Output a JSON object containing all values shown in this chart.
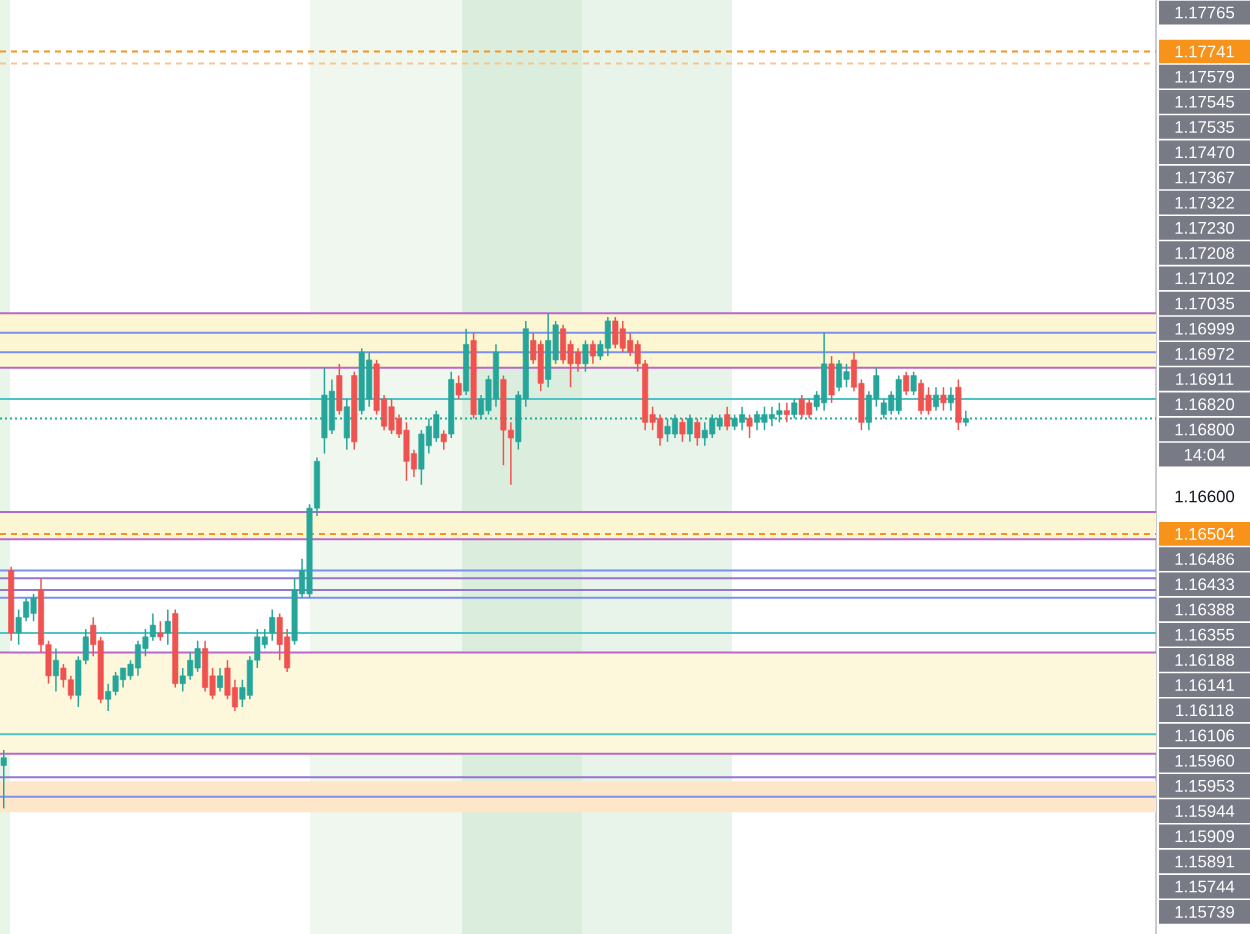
{
  "chart_data": {
    "type": "candlestick",
    "categories": [
      null,
      null,
      null,
      null,
      null,
      null,
      null,
      null,
      null,
      null,
      null,
      null,
      null,
      null,
      null,
      null,
      null,
      null,
      null,
      null,
      null,
      null,
      null,
      null,
      null,
      null,
      null,
      null,
      null,
      null,
      null,
      null,
      null,
      null,
      null,
      null,
      null,
      null,
      null,
      null,
      null,
      null,
      null,
      null,
      null,
      null,
      null,
      null,
      null,
      null,
      null,
      null,
      null,
      null,
      null,
      null,
      null,
      null,
      null,
      null,
      null,
      null,
      null,
      null,
      null,
      null,
      null,
      null,
      null,
      null,
      null,
      null,
      null,
      null,
      null,
      null,
      null,
      null,
      null,
      null,
      null,
      null,
      null,
      null,
      null,
      null,
      null,
      null,
      null,
      null,
      null,
      null,
      null,
      null,
      null,
      null,
      null,
      null,
      null,
      null,
      null,
      null,
      null,
      null,
      null,
      null,
      null,
      null,
      null,
      null,
      null,
      null,
      null,
      null,
      null,
      null,
      null,
      null,
      null,
      null,
      null,
      null,
      null,
      null,
      null,
      null,
      null,
      null,
      null,
      null,
      null,
      null,
      null,
      null,
      null,
      null,
      null,
      null,
      null,
      null,
      null,
      null,
      null,
      null,
      null,
      null,
      null,
      null,
      null,
      null,
      null,
      null,
      null,
      null,
      null
    ],
    "ohlc": [
      [
        1.1591,
        1.1595,
        1.158,
        1.1593
      ],
      [
        1.1641,
        1.1642,
        1.1623,
        1.1625
      ],
      [
        1.1625,
        1.1631,
        1.1622,
        1.1629
      ],
      [
        1.1629,
        1.1634,
        1.1628,
        1.1633
      ],
      [
        1.163,
        1.1635,
        1.1628,
        1.1634
      ],
      [
        1.1636,
        1.1639,
        1.162,
        1.1622
      ],
      [
        1.1622,
        1.1623,
        1.1612,
        1.1614
      ],
      [
        1.1614,
        1.1621,
        1.161,
        1.1618
      ],
      [
        1.1616,
        1.1617,
        1.1611,
        1.1613
      ],
      [
        1.1613,
        1.1614,
        1.1608,
        1.1609
      ],
      [
        1.1609,
        1.1619,
        1.1606,
        1.1618
      ],
      [
        1.1618,
        1.1626,
        1.1617,
        1.1624
      ],
      [
        1.1627,
        1.1629,
        1.1619,
        1.1622
      ],
      [
        1.1623,
        1.1624,
        1.1607,
        1.1608
      ],
      [
        1.1608,
        1.1612,
        1.1605,
        1.161
      ],
      [
        1.161,
        1.1615,
        1.1609,
        1.1614
      ],
      [
        1.1613,
        1.1616,
        1.1611,
        1.1616
      ],
      [
        1.1614,
        1.1618,
        1.1613,
        1.1617
      ],
      [
        1.1616,
        1.1623,
        1.1614,
        1.1622
      ],
      [
        1.1621,
        1.1626,
        1.1619,
        1.1624
      ],
      [
        1.1624,
        1.163,
        1.1623,
        1.1627
      ],
      [
        1.1625,
        1.1628,
        1.1623,
        1.1624
      ],
      [
        1.1625,
        1.1631,
        1.1622,
        1.1628
      ],
      [
        1.163,
        1.1631,
        1.1611,
        1.1612
      ],
      [
        1.1612,
        1.1616,
        1.161,
        1.1614
      ],
      [
        1.1614,
        1.162,
        1.1613,
        1.1618
      ],
      [
        1.1616,
        1.1623,
        1.1615,
        1.1621
      ],
      [
        1.1621,
        1.1623,
        1.161,
        1.1611
      ],
      [
        1.1614,
        1.1616,
        1.1608,
        1.1609
      ],
      [
        1.1611,
        1.1616,
        1.161,
        1.1614
      ],
      [
        1.1616,
        1.1618,
        1.1608,
        1.1609
      ],
      [
        1.1611,
        1.1613,
        1.1605,
        1.1606
      ],
      [
        1.1608,
        1.1613,
        1.1606,
        1.1611
      ],
      [
        1.1609,
        1.1619,
        1.1608,
        1.1618
      ],
      [
        1.1618,
        1.1626,
        1.1616,
        1.1624
      ],
      [
        1.1622,
        1.1626,
        1.1621,
        1.1624
      ],
      [
        1.1625,
        1.1631,
        1.1623,
        1.1629
      ],
      [
        1.1629,
        1.163,
        1.1618,
        1.1622
      ],
      [
        1.1624,
        1.1626,
        1.1615,
        1.1616
      ],
      [
        1.1623,
        1.1639,
        1.1622,
        1.1636
      ],
      [
        1.1635,
        1.1644,
        1.1634,
        1.1641
      ],
      [
        1.1635,
        1.1658,
        1.1634,
        1.1657
      ],
      [
        1.1657,
        1.167,
        1.1655,
        1.1669
      ],
      [
        1.1675,
        1.1693,
        1.1671,
        1.1686
      ],
      [
        1.1677,
        1.169,
        1.1676,
        1.1687
      ],
      [
        1.1691,
        1.1694,
        1.1681,
        1.1682
      ],
      [
        1.1675,
        1.1685,
        1.1672,
        1.1683
      ],
      [
        1.1691,
        1.1692,
        1.1672,
        1.1674
      ],
      [
        1.1682,
        1.1698,
        1.1681,
        1.1697
      ],
      [
        1.1685,
        1.1697,
        1.1683,
        1.1695
      ],
      [
        1.1694,
        1.1695,
        1.1681,
        1.1682
      ],
      [
        1.1685,
        1.1686,
        1.1677,
        1.1678
      ],
      [
        1.1683,
        1.1685,
        1.1676,
        1.1677
      ],
      [
        1.168,
        1.1681,
        1.1675,
        1.1676
      ],
      [
        1.1677,
        1.1679,
        1.1664,
        1.1669
      ],
      [
        1.1671,
        1.1672,
        1.1665,
        1.1667
      ],
      [
        1.1667,
        1.1677,
        1.1663,
        1.1676
      ],
      [
        1.1673,
        1.168,
        1.1671,
        1.1678
      ],
      [
        1.1675,
        1.1682,
        1.1674,
        1.1681
      ],
      [
        1.1676,
        1.1677,
        1.1672,
        1.1674
      ],
      [
        1.1676,
        1.1692,
        1.1675,
        1.169
      ],
      [
        1.1689,
        1.1691,
        1.1685,
        1.1686
      ],
      [
        1.1687,
        1.1703,
        1.1686,
        1.1699
      ],
      [
        1.17,
        1.1702,
        1.168,
        1.1681
      ],
      [
        1.1681,
        1.1686,
        1.168,
        1.1685
      ],
      [
        1.1682,
        1.1691,
        1.1681,
        1.169
      ],
      [
        1.1685,
        1.1699,
        1.1683,
        1.1697
      ],
      [
        1.169,
        1.1691,
        1.1668,
        1.1677
      ],
      [
        1.1677,
        1.1679,
        1.1663,
        1.1675
      ],
      [
        1.1674,
        1.1687,
        1.1672,
        1.1686
      ],
      [
        1.1685,
        1.1705,
        1.1683,
        1.1703
      ],
      [
        1.17,
        1.1702,
        1.1694,
        1.1695
      ],
      [
        1.1699,
        1.17,
        1.1687,
        1.1689
      ],
      [
        1.169,
        1.1707,
        1.1688,
        1.17
      ],
      [
        1.1695,
        1.1705,
        1.1694,
        1.1704
      ],
      [
        1.1703,
        1.1704,
        1.1694,
        1.1695
      ],
      [
        1.1699,
        1.17,
        1.1688,
        1.1694
      ],
      [
        1.1697,
        1.1698,
        1.1692,
        1.1694
      ],
      [
        1.1694,
        1.17,
        1.1692,
        1.1699
      ],
      [
        1.1699,
        1.17,
        1.1694,
        1.1696
      ],
      [
        1.1696,
        1.17,
        1.1695,
        1.1699
      ],
      [
        1.1698,
        1.1706,
        1.1696,
        1.1705
      ],
      [
        1.1705,
        1.1706,
        1.1698,
        1.1699
      ],
      [
        1.1703,
        1.1705,
        1.1697,
        1.1698
      ],
      [
        1.17,
        1.1702,
        1.1696,
        1.1697
      ],
      [
        1.1699,
        1.17,
        1.1692,
        1.1694
      ],
      [
        1.1694,
        1.1695,
        1.1677,
        1.1679
      ],
      [
        1.1681,
        1.1683,
        1.1677,
        1.1679
      ],
      [
        1.168,
        1.1681,
        1.1673,
        1.1675
      ],
      [
        1.1676,
        1.168,
        1.1674,
        1.1678
      ],
      [
        1.1676,
        1.1681,
        1.1675,
        1.168
      ],
      [
        1.1679,
        1.168,
        1.1674,
        1.1676
      ],
      [
        1.1676,
        1.1681,
        1.1674,
        1.168
      ],
      [
        1.1679,
        1.168,
        1.1673,
        1.1675
      ],
      [
        1.1675,
        1.1679,
        1.1673,
        1.1677
      ],
      [
        1.1676,
        1.1681,
        1.1675,
        1.168
      ],
      [
        1.1678,
        1.1681,
        1.1677,
        1.168
      ],
      [
        1.1681,
        1.1683,
        1.1677,
        1.1678
      ],
      [
        1.1678,
        1.1681,
        1.1677,
        1.168
      ],
      [
        1.1679,
        1.1683,
        1.1677,
        1.1681
      ],
      [
        1.168,
        1.1681,
        1.1675,
        1.1678
      ],
      [
        1.1679,
        1.1682,
        1.1677,
        1.1681
      ],
      [
        1.1679,
        1.1683,
        1.1677,
        1.1681
      ],
      [
        1.168,
        1.1683,
        1.1678,
        1.1681
      ],
      [
        1.1681,
        1.1684,
        1.1679,
        1.1682
      ],
      [
        1.1682,
        1.1684,
        1.1679,
        1.1681
      ],
      [
        1.1681,
        1.1685,
        1.168,
        1.1684
      ],
      [
        1.1685,
        1.1686,
        1.168,
        1.1681
      ],
      [
        1.1684,
        1.1685,
        1.168,
        1.1681
      ],
      [
        1.1683,
        1.1687,
        1.1682,
        1.1686
      ],
      [
        1.1684,
        1.1702,
        1.1682,
        1.1694
      ],
      [
        1.1694,
        1.1696,
        1.1684,
        1.1686
      ],
      [
        1.1688,
        1.1695,
        1.1687,
        1.1694
      ],
      [
        1.169,
        1.1694,
        1.1688,
        1.1692
      ],
      [
        1.1695,
        1.1697,
        1.1687,
        1.1688
      ],
      [
        1.1689,
        1.169,
        1.1677,
        1.1679
      ],
      [
        1.1679,
        1.1687,
        1.1677,
        1.1686
      ],
      [
        1.1685,
        1.1693,
        1.1683,
        1.1691
      ],
      [
        1.1681,
        1.1685,
        1.168,
        1.1684
      ],
      [
        1.1682,
        1.1687,
        1.1681,
        1.1686
      ],
      [
        1.1682,
        1.1691,
        1.1681,
        1.169
      ],
      [
        1.1691,
        1.1692,
        1.1686,
        1.1687
      ],
      [
        1.1687,
        1.1692,
        1.1686,
        1.1691
      ],
      [
        1.1689,
        1.169,
        1.1681,
        1.1682
      ],
      [
        1.1686,
        1.1688,
        1.1681,
        1.1682
      ],
      [
        1.1683,
        1.1688,
        1.1682,
        1.1686
      ],
      [
        1.1686,
        1.1688,
        1.1682,
        1.1684
      ],
      [
        1.1684,
        1.1688,
        1.1682,
        1.1686
      ],
      [
        1.1688,
        1.169,
        1.1677,
        1.1679
      ],
      [
        1.1679,
        1.1682,
        1.1678,
        1.168
      ],
      null,
      null,
      null,
      null,
      null,
      null,
      null,
      null,
      null,
      null,
      null,
      null,
      null,
      null,
      null,
      null,
      null,
      null,
      null,
      null,
      null,
      null,
      null,
      null,
      null
    ],
    "ylim": [
      1.15478,
      1.17873
    ],
    "yticks": [
      {
        "value": 1.17741,
        "label": "1.17741"
      },
      {
        "value": 1.166,
        "label": "1.16600"
      },
      {
        "value": 1.16504,
        "label": "1.16504"
      }
    ],
    "tick_labels": "y",
    "bands": [
      {
        "axis": "y",
        "from": 1.1693,
        "to": 1.1707,
        "color": "#fdf6d2"
      },
      {
        "axis": "y",
        "from": 1.1649,
        "to": 1.1656,
        "color": "#fdf6d2"
      },
      {
        "axis": "y",
        "from": 1.1594,
        "to": 1.162,
        "color": "#fdf8dc"
      },
      {
        "axis": "y",
        "from": 1.1579,
        "to": 1.1587,
        "color": "#fde7c8"
      }
    ],
    "ref_lines": [
      {
        "axis": "y",
        "value": 1.17741,
        "color": "#f7931a",
        "line_style": "dashed"
      },
      {
        "axis": "y",
        "value": 1.168,
        "color": "#22ab94",
        "line_style": "dotted"
      },
      {
        "axis": "y",
        "value": 1.16504,
        "color": "#f7931a",
        "line_style": "dashed"
      },
      {
        "axis": "y",
        "value": 1.1771,
        "color": "#f9c58d",
        "line_style": "dashed"
      },
      {
        "axis": "y",
        "value": 1.1707,
        "color": "#ba68c8",
        "line_style": "solid"
      },
      {
        "axis": "y",
        "value": 1.1702,
        "color": "#7b8ff0",
        "line_style": "solid"
      },
      {
        "axis": "y",
        "value": 1.1697,
        "color": "#7b8ff0",
        "line_style": "solid"
      },
      {
        "axis": "y",
        "value": 1.1693,
        "color": "#ba68c8",
        "line_style": "solid"
      },
      {
        "axis": "y",
        "value": 1.1685,
        "color": "#4dc3c8",
        "line_style": "solid"
      },
      {
        "axis": "y",
        "value": 1.1656,
        "color": "#ba68c8",
        "line_style": "solid"
      },
      {
        "axis": "y",
        "value": 1.1649,
        "color": "#ba68c8",
        "line_style": "solid"
      },
      {
        "axis": "y",
        "value": 1.1641,
        "color": "#7b8ff0",
        "line_style": "solid"
      },
      {
        "axis": "y",
        "value": 1.1639,
        "color": "#9575cd",
        "line_style": "solid"
      },
      {
        "axis": "y",
        "value": 1.1636,
        "color": "#9575cd",
        "line_style": "solid"
      },
      {
        "axis": "y",
        "value": 1.1634,
        "color": "#7b8ff0",
        "line_style": "solid"
      },
      {
        "axis": "y",
        "value": 1.1625,
        "color": "#4dc3c8",
        "line_style": "solid"
      },
      {
        "axis": "y",
        "value": 1.162,
        "color": "#ba68c8",
        "line_style": "solid"
      },
      {
        "axis": "y",
        "value": 1.1599,
        "color": "#4dc3c8",
        "line_style": "solid"
      },
      {
        "axis": "y",
        "value": 1.1594,
        "color": "#ba68c8",
        "line_style": "solid"
      },
      {
        "axis": "y",
        "value": 1.1588,
        "color": "#9575cd",
        "line_style": "solid"
      },
      {
        "axis": "y",
        "value": 1.1583,
        "color": "#7b8ff0",
        "line_style": "solid"
      }
    ],
    "annotations": [
      "1.17765",
      "1.17579",
      "1.17545",
      "1.17535",
      "1.17470",
      "1.17367",
      "1.17322",
      "1.17230",
      "1.17208",
      "1.17102",
      "1.17035",
      "1.16999",
      "1.16972",
      "1.16911",
      "1.16820",
      "1.16800",
      "14:04",
      "1.16486",
      "1.16433",
      "1.16388",
      "1.16355",
      "1.16188",
      "1.16141",
      "1.16118",
      "1.16106",
      "1.15960",
      "1.15953",
      "1.15944",
      "1.15909",
      "1.15891",
      "1.15744",
      "1.15739"
    ]
  }
}
